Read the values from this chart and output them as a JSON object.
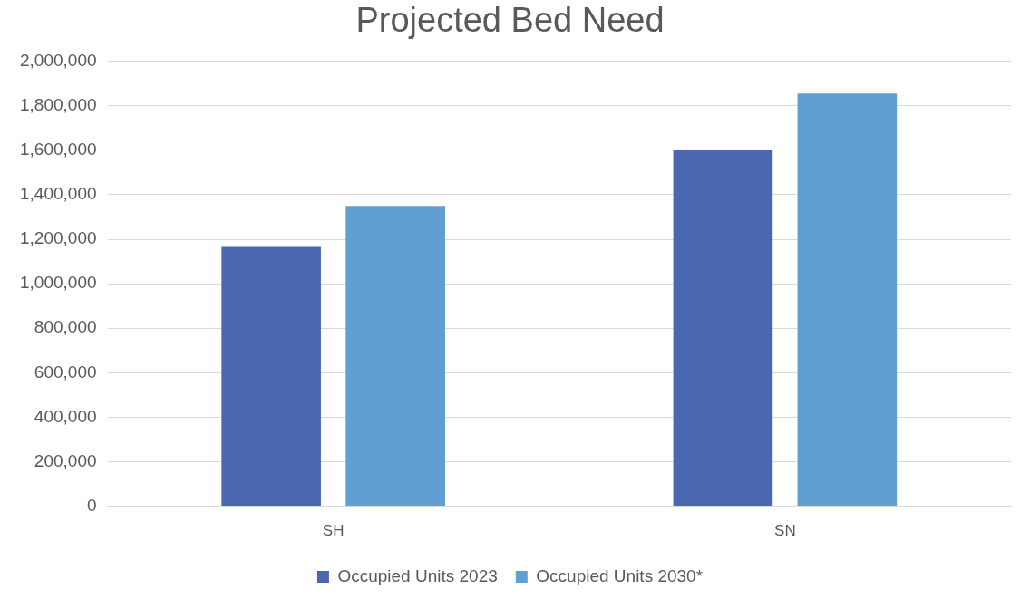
{
  "chart_data": {
    "type": "bar",
    "title": "Projected Bed Need",
    "categories": [
      "SH",
      "SN"
    ],
    "series": [
      {
        "name": "Occupied Units 2023",
        "color": "#4a67b0",
        "values": [
          1165000,
          1600000
        ]
      },
      {
        "name": "Occupied Units 2030*",
        "color": "#619fd3",
        "values": [
          1350000,
          1855000
        ]
      }
    ],
    "ylim": [
      0,
      2000000
    ],
    "yticks": [
      0,
      {
        "value": 200000,
        "label": "200,000"
      },
      {
        "value": 400000,
        "label": "400,000"
      },
      {
        "value": 600000,
        "label": "600,000"
      },
      {
        "value": 800000,
        "label": "800,000"
      },
      {
        "value": 1000000,
        "label": "1,000,000"
      },
      {
        "value": 1200000,
        "label": "1,200,000"
      },
      {
        "value": 1400000,
        "label": "1,400,000"
      },
      {
        "value": 1600000,
        "label": "1,600,000"
      },
      {
        "value": 1800000,
        "label": "1,800,000"
      },
      {
        "value": 2000000,
        "label": "2,000,000"
      }
    ],
    "grid": "y",
    "legend": "bottom"
  }
}
